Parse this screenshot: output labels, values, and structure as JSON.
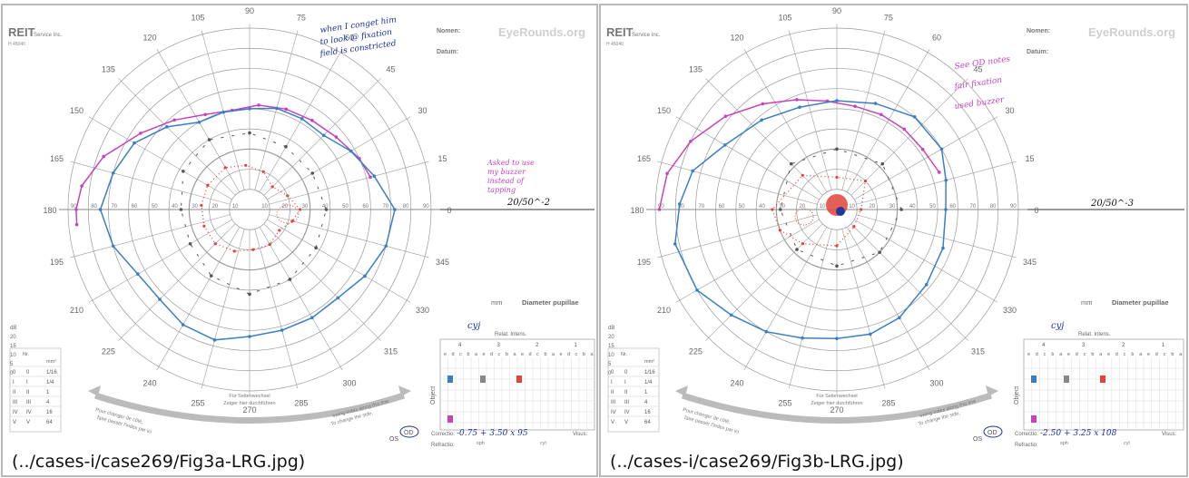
{
  "figures": [
    {
      "id": "a",
      "caption": "(../cases-i/case269/Fig3a-LRG.jpg)",
      "watermark": "EyeRounds.org",
      "brand": "REIT",
      "brand_sub": "Service Inc.",
      "brand_code": "H 45040",
      "name_label": "Nomen:",
      "date_label": "Datum:",
      "eye_label": "OD",
      "os_label": "OS",
      "pupil_unit": "mm",
      "pupil_label": "Diameter pupillae",
      "relat_label": "Relat. Intens.",
      "correction_label": "Correctio:",
      "refraction_label": "Refractio:",
      "visus_label": "Visus:",
      "sph_label": "sph",
      "cyl_label": "cyl",
      "object_label": "Object",
      "correction_value": "-0.75 + 3.50 x 95",
      "acuity_value": "20/50^-2",
      "examiner": "cyj",
      "notes_top": [
        "when I conget him",
        "to look @ fixation",
        "field is constricted"
      ],
      "notes_right": [
        "Asked to use",
        "my buzzer",
        "instead of",
        "tapping"
      ],
      "arrow_left_text": [
        "Pour changer de côté,",
        "faire passer l'index par ici"
      ],
      "arrow_mid_text": [
        "Für Seitenwechsel",
        "Zeiger hier durchführen"
      ],
      "arrow_right_text": [
        "To change the side,",
        "swing index along this line"
      ]
    },
    {
      "id": "b",
      "caption": "(../cases-i/case269/Fig3b-LRG.jpg)",
      "watermark": "EyeRounds.org",
      "brand": "REIT",
      "brand_sub": "Service Inc.",
      "brand_code": "H 45040",
      "name_label": "Nomen:",
      "date_label": "Datum:",
      "eye_label": "OD",
      "os_label": "OS",
      "pupil_unit": "mm",
      "pupil_label": "Diameter pupillae",
      "relat_label": "Relat. Intens.",
      "correction_label": "Correctio:",
      "refraction_label": "Refractio:",
      "visus_label": "Visus:",
      "sph_label": "sph",
      "cyl_label": "cyl",
      "object_label": "Object",
      "correction_value": "-2.50 + 3.25 x 108",
      "acuity_value": "20/50^-3",
      "examiner": "cyj",
      "notes_top": [
        "See OD notes",
        "fair fixation",
        "used buzzer"
      ],
      "notes_right": [],
      "arrow_left_text": [
        "Pour changer de côté,",
        "faire passer l'index par ici"
      ],
      "arrow_mid_text": [
        "Für Seitenwechsel",
        "Zeiger hier durchführen"
      ],
      "arrow_right_text": [
        "To change the side,",
        "swing index along this line"
      ]
    }
  ],
  "angle_labels": [
    "0",
    "15",
    "30",
    "45",
    "60",
    "75",
    "90",
    "105",
    "120",
    "135",
    "150",
    "165",
    "180",
    "195",
    "210",
    "225",
    "240",
    "255",
    "270",
    "285",
    "300",
    "315",
    "330",
    "345"
  ],
  "radius_labels": [
    "90",
    "80",
    "70",
    "60",
    "50",
    "40",
    "30",
    "20",
    "10"
  ],
  "db_rows": [
    "dB",
    "20",
    "15",
    "10",
    "5",
    "0"
  ],
  "key_table": {
    "headers": [
      "Nr.",
      "mm²"
    ],
    "rows": [
      [
        "0",
        "0",
        "1/16"
      ],
      [
        "I",
        "I",
        "1/4"
      ],
      [
        "II",
        "II",
        "1"
      ],
      [
        "III",
        "III",
        "4"
      ],
      [
        "IV",
        "IV",
        "16"
      ],
      [
        "V",
        "V",
        "64"
      ]
    ]
  },
  "intensity_groups": [
    "4",
    "3",
    "2",
    "1"
  ],
  "intensity_letters": [
    "e",
    "d",
    "c",
    "b",
    "a",
    "e",
    "d",
    "c",
    "b",
    "a",
    "e",
    "d",
    "c",
    "b",
    "a",
    "e",
    "d",
    "c",
    "b",
    "a"
  ],
  "colors": {
    "blue": "#3a7fc4",
    "magenta": "#c544bd",
    "red": "#e2433a",
    "gray": "#555555",
    "grid": "#9a9a9a",
    "ink": "#1c2f9b"
  }
}
